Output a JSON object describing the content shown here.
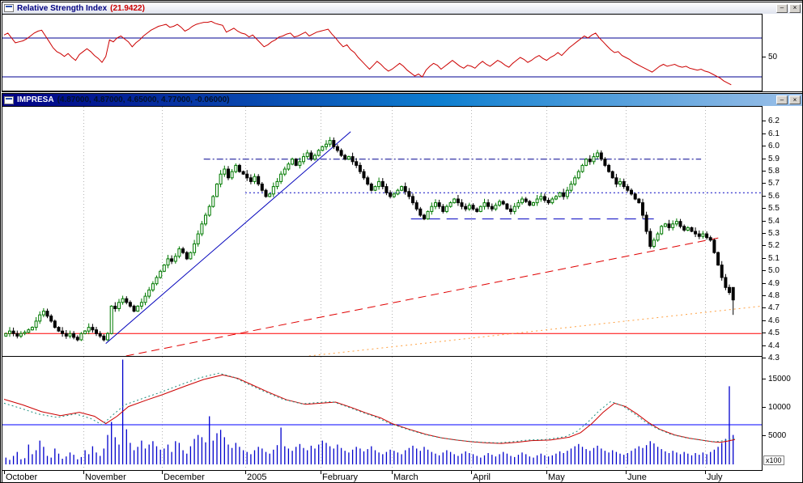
{
  "rsi_window": {
    "title": "Relative Strength Index",
    "value": "(21.9422)"
  },
  "price_window": {
    "title": "IMPRESA",
    "value": "(4.87000, 4.87000, 4.65000, 4.77000, -0.06000)"
  },
  "window_controls": {
    "minimize": "–",
    "close": "×"
  },
  "rsi_axis": {
    "labels": [
      "50"
    ]
  },
  "price_axis": {
    "labels": [
      "6.2",
      "6.1",
      "6.0",
      "5.9",
      "5.8",
      "5.7",
      "5.6",
      "5.5",
      "5.4",
      "5.3",
      "5.2",
      "5.1",
      "5.0",
      "4.9",
      "4.8",
      "4.7",
      "4.6",
      "4.5",
      "4.4",
      "4.3"
    ]
  },
  "volume_axis": {
    "labels": [
      "15000",
      "10000",
      "5000"
    ],
    "unit_label": "x100"
  },
  "x_axis": {
    "labels": [
      "October",
      "November",
      "December",
      "2005",
      "February",
      "March",
      "April",
      "May",
      "June",
      "July"
    ],
    "month_start_days": [
      0,
      21,
      42,
      64,
      84,
      103,
      124,
      144,
      165,
      186
    ]
  },
  "colors": {
    "grid": "#b4b4b4",
    "ref_line": "#000090",
    "vol_hline": "#0000ff"
  },
  "chart_data": [
    {
      "id": "rsi",
      "type": "line",
      "title": "Relative Strength Index",
      "current_value": 21.9422,
      "ylim": [
        16,
        94
      ],
      "ref_lines": [
        70,
        30
      ],
      "color": "#cc0000",
      "values": [
        73,
        75,
        70,
        65,
        66,
        67,
        69,
        72,
        75,
        77,
        78,
        72,
        66,
        60,
        56,
        54,
        51,
        54,
        50,
        47,
        53,
        56,
        59,
        56,
        52,
        49,
        45,
        51,
        68,
        66,
        70,
        72,
        69,
        66,
        61,
        65,
        68,
        72,
        75,
        78,
        80,
        82,
        83,
        84,
        81,
        82,
        84,
        81,
        77,
        79,
        82,
        84,
        85,
        86,
        86,
        87,
        85,
        84,
        83,
        76,
        78,
        80,
        77,
        75,
        74,
        71,
        73,
        69,
        65,
        61,
        63,
        66,
        68,
        71,
        72,
        74,
        75,
        71,
        72,
        74,
        76,
        72,
        74,
        76,
        77,
        78,
        79,
        74,
        70,
        65,
        61,
        63,
        58,
        55,
        50,
        46,
        42,
        38,
        42,
        46,
        43,
        39,
        36,
        38,
        41,
        44,
        41,
        37,
        34,
        31,
        33,
        30,
        37,
        41,
        44,
        42,
        38,
        41,
        44,
        47,
        44,
        41,
        39,
        42,
        41,
        39,
        43,
        46,
        43,
        41,
        44,
        47,
        45,
        42,
        40,
        44,
        47,
        50,
        48,
        45,
        47,
        50,
        52,
        49,
        47,
        50,
        52,
        55,
        52,
        56,
        60,
        63,
        66,
        69,
        72,
        70,
        73,
        75,
        70,
        66,
        62,
        58,
        55,
        56,
        52,
        50,
        48,
        45,
        43,
        41,
        39,
        37,
        35,
        38,
        41,
        43,
        41,
        42,
        43,
        41,
        40,
        41,
        39,
        38,
        37,
        38,
        36,
        35,
        33,
        31,
        29,
        26,
        24,
        21.9422
      ]
    },
    {
      "id": "price",
      "type": "candlestick",
      "title": "IMPRESA",
      "ylim": [
        4.32,
        6.32
      ],
      "up_color": "#007a00",
      "down_color": "#000000",
      "last_candle": {
        "open": 4.87,
        "high": 4.87,
        "low": 4.65,
        "close": 4.77,
        "change": -0.06
      },
      "close": [
        4.5,
        4.52,
        4.5,
        4.48,
        4.5,
        4.51,
        4.53,
        4.55,
        4.6,
        4.65,
        4.68,
        4.64,
        4.6,
        4.55,
        4.52,
        4.5,
        4.48,
        4.5,
        4.47,
        4.45,
        4.5,
        4.52,
        4.55,
        4.53,
        4.5,
        4.48,
        4.45,
        4.5,
        4.72,
        4.7,
        4.75,
        4.78,
        4.75,
        4.72,
        4.68,
        4.72,
        4.75,
        4.8,
        4.85,
        4.9,
        4.95,
        5.0,
        5.05,
        5.1,
        5.08,
        5.12,
        5.18,
        5.15,
        5.1,
        5.15,
        5.22,
        5.3,
        5.38,
        5.45,
        5.52,
        5.6,
        5.7,
        5.78,
        5.82,
        5.75,
        5.8,
        5.85,
        5.8,
        5.78,
        5.75,
        5.72,
        5.76,
        5.7,
        5.65,
        5.6,
        5.62,
        5.68,
        5.72,
        5.78,
        5.82,
        5.86,
        5.9,
        5.85,
        5.88,
        5.92,
        5.95,
        5.9,
        5.93,
        5.97,
        6.0,
        6.02,
        6.05,
        6.0,
        5.97,
        5.93,
        5.9,
        5.92,
        5.88,
        5.85,
        5.8,
        5.75,
        5.7,
        5.65,
        5.68,
        5.72,
        5.68,
        5.63,
        5.6,
        5.62,
        5.65,
        5.68,
        5.64,
        5.6,
        5.55,
        5.5,
        5.45,
        5.42,
        5.48,
        5.52,
        5.55,
        5.52,
        5.48,
        5.52,
        5.55,
        5.58,
        5.55,
        5.52,
        5.5,
        5.53,
        5.5,
        5.48,
        5.52,
        5.55,
        5.52,
        5.5,
        5.53,
        5.56,
        5.54,
        5.5,
        5.48,
        5.52,
        5.55,
        5.58,
        5.56,
        5.53,
        5.55,
        5.58,
        5.6,
        5.57,
        5.55,
        5.58,
        5.6,
        5.63,
        5.6,
        5.65,
        5.7,
        5.75,
        5.8,
        5.85,
        5.9,
        5.88,
        5.92,
        5.95,
        5.9,
        5.85,
        5.8,
        5.75,
        5.7,
        5.72,
        5.68,
        5.65,
        5.62,
        5.58,
        5.55,
        5.45,
        5.32,
        5.2,
        5.25,
        5.3,
        5.36,
        5.38,
        5.35,
        5.38,
        5.4,
        5.36,
        5.33,
        5.35,
        5.32,
        5.3,
        5.28,
        5.3,
        5.27,
        5.25,
        5.15,
        5.05,
        4.95,
        4.87,
        4.83,
        4.77
      ],
      "lines": [
        {
          "name": "support-line-red",
          "kind": "hline",
          "price": 4.5,
          "from_day": 0,
          "to_day": 201,
          "color": "#ff0000",
          "dash": ""
        },
        {
          "name": "resistance-line-dashdot",
          "kind": "hline",
          "price": 5.9,
          "from_day": 53,
          "to_day": 185,
          "color": "#000090",
          "dash": "8 3 2 3"
        },
        {
          "name": "mid-line-dotted",
          "kind": "hline",
          "price": 5.63,
          "from_day": 64,
          "to_day": 201,
          "color": "#0000c0",
          "dash": "2 3"
        },
        {
          "name": "mid-line-longdash",
          "kind": "hline",
          "price": 5.42,
          "from_day": 108,
          "to_day": 174,
          "color": "#0000c0",
          "dash": "14 8"
        },
        {
          "name": "uptrend-blue",
          "kind": "trend",
          "from_day": 27,
          "from_price": 4.42,
          "to_day": 92,
          "to_price": 6.12,
          "color": "#0000bb",
          "dash": ""
        },
        {
          "name": "uptrend-red-dashed",
          "kind": "trend",
          "from_day": 29,
          "from_price": 4.3,
          "to_day": 190,
          "to_price": 5.27,
          "color": "#e00000",
          "dash": "10 6"
        },
        {
          "name": "uptrend-orange-dotted",
          "kind": "trend",
          "from_day": 72,
          "from_price": 4.29,
          "to_day": 201,
          "to_price": 4.72,
          "color": "#ffa040",
          "dash": "2 4"
        }
      ]
    },
    {
      "id": "volume",
      "type": "bar",
      "title": "Volume",
      "unit": "x100",
      "ylim": [
        0,
        19000
      ],
      "color": "#0000cc",
      "hline": 7000,
      "values": [
        1200,
        800,
        1500,
        2200,
        900,
        1100,
        3500,
        1800,
        2500,
        4200,
        3100,
        1500,
        1200,
        2800,
        1900,
        1000,
        1400,
        2100,
        1700,
        900,
        1300,
        2500,
        1800,
        3200,
        2100,
        1500,
        2800,
        5200,
        7500,
        4800,
        3500,
        18500,
        6200,
        3800,
        2500,
        3100,
        4200,
        2800,
        3500,
        4100,
        3200,
        2600,
        2800,
        3500,
        2200,
        4100,
        3800,
        2500,
        1900,
        3200,
        4500,
        5200,
        4800,
        3900,
        8500,
        4200,
        5500,
        6100,
        4800,
        3500,
        2900,
        3800,
        3100,
        2500,
        2200,
        1800,
        2500,
        3100,
        2800,
        2200,
        1900,
        2600,
        3400,
        6500,
        3200,
        2800,
        2400,
        3100,
        3600,
        2900,
        2500,
        3300,
        2800,
        3500,
        4200,
        3800,
        3200,
        2800,
        3500,
        2900,
        2400,
        2100,
        2600,
        3100,
        2800,
        2300,
        2700,
        3200,
        2500,
        2100,
        1800,
        2200,
        2600,
        2400,
        2100,
        1800,
        2500,
        2900,
        3300,
        2800,
        2400,
        3100,
        2600,
        2200,
        1900,
        1600,
        2100,
        2500,
        2200,
        1800,
        1500,
        1900,
        2300,
        2000,
        1800,
        1500,
        1200,
        1600,
        2000,
        1700,
        1400,
        1800,
        2200,
        1900,
        1500,
        1300,
        1700,
        2100,
        1800,
        1400,
        1200,
        1600,
        1900,
        1600,
        1400,
        1600,
        1900,
        2300,
        2000,
        2400,
        2800,
        3200,
        3600,
        3100,
        2700,
        2400,
        2900,
        3300,
        2800,
        2400,
        2100,
        2500,
        2200,
        1900,
        1700,
        2000,
        2400,
        2800,
        3200,
        2900,
        3400,
        4100,
        3700,
        3100,
        2700,
        2300,
        2000,
        2400,
        2100,
        1800,
        2200,
        1900,
        1600,
        2000,
        1700,
        2100,
        1800,
        2200,
        2600,
        3100,
        3800,
        4500,
        13800,
        5200
      ],
      "overlays": [
        {
          "name": "volume-ma-red",
          "color": "#cc0000",
          "dash": "",
          "points": [
            [
              0,
              11500
            ],
            [
              5,
              10500
            ],
            [
              10,
              9300
            ],
            [
              15,
              8600
            ],
            [
              20,
              9200
            ],
            [
              24,
              8500
            ],
            [
              27,
              7200
            ],
            [
              30,
              8500
            ],
            [
              33,
              10200
            ],
            [
              38,
              11400
            ],
            [
              42,
              12300
            ],
            [
              48,
              13800
            ],
            [
              53,
              15000
            ],
            [
              58,
              15800
            ],
            [
              62,
              15200
            ],
            [
              66,
              14000
            ],
            [
              70,
              12800
            ],
            [
              75,
              11400
            ],
            [
              80,
              10600
            ],
            [
              84,
              10800
            ],
            [
              88,
              11000
            ],
            [
              92,
              10100
            ],
            [
              96,
              9100
            ],
            [
              100,
              8200
            ],
            [
              103,
              7200
            ],
            [
              108,
              6100
            ],
            [
              112,
              5300
            ],
            [
              116,
              4700
            ],
            [
              120,
              4300
            ],
            [
              124,
              4000
            ],
            [
              128,
              3800
            ],
            [
              132,
              3700
            ],
            [
              136,
              3900
            ],
            [
              140,
              4200
            ],
            [
              145,
              4300
            ],
            [
              150,
              4800
            ],
            [
              153,
              5600
            ],
            [
              156,
              7200
            ],
            [
              159,
              9200
            ],
            [
              162,
              10800
            ],
            [
              165,
              10200
            ],
            [
              168,
              8900
            ],
            [
              171,
              7400
            ],
            [
              174,
              6200
            ],
            [
              178,
              5200
            ],
            [
              182,
              4600
            ],
            [
              185,
              4300
            ],
            [
              188,
              4000
            ],
            [
              190,
              3900
            ],
            [
              192,
              4100
            ],
            [
              194,
              4400
            ]
          ]
        },
        {
          "name": "volume-ma-teal",
          "color": "#1f9080",
          "dash": "2 3",
          "points": [
            [
              0,
              10800
            ],
            [
              4,
              10000
            ],
            [
              9,
              8900
            ],
            [
              14,
              8300
            ],
            [
              19,
              8900
            ],
            [
              23,
              8100
            ],
            [
              26,
              7000
            ],
            [
              29,
              8800
            ],
            [
              32,
              10500
            ],
            [
              37,
              11700
            ],
            [
              41,
              12600
            ],
            [
              47,
              14100
            ],
            [
              52,
              15300
            ],
            [
              57,
              16100
            ],
            [
              61,
              15400
            ],
            [
              65,
              14100
            ],
            [
              69,
              12900
            ],
            [
              74,
              11500
            ],
            [
              79,
              10700
            ],
            [
              83,
              10900
            ],
            [
              87,
              11100
            ],
            [
              91,
              10200
            ],
            [
              95,
              9200
            ],
            [
              99,
              8300
            ],
            [
              102,
              7300
            ],
            [
              107,
              6200
            ],
            [
              111,
              5400
            ],
            [
              115,
              4800
            ],
            [
              119,
              4400
            ],
            [
              123,
              4100
            ],
            [
              127,
              3900
            ],
            [
              131,
              3800
            ],
            [
              135,
              4000
            ],
            [
              139,
              4300
            ],
            [
              144,
              4400
            ],
            [
              149,
              4900
            ],
            [
              152,
              5800
            ],
            [
              155,
              7500
            ],
            [
              158,
              9500
            ],
            [
              161,
              11100
            ],
            [
              164,
              10400
            ],
            [
              167,
              9100
            ],
            [
              170,
              7600
            ],
            [
              173,
              6400
            ],
            [
              177,
              5300
            ],
            [
              181,
              4700
            ],
            [
              184,
              4400
            ],
            [
              187,
              4100
            ],
            [
              189,
              4000
            ],
            [
              191,
              4200
            ],
            [
              194,
              4600
            ]
          ]
        }
      ]
    }
  ]
}
